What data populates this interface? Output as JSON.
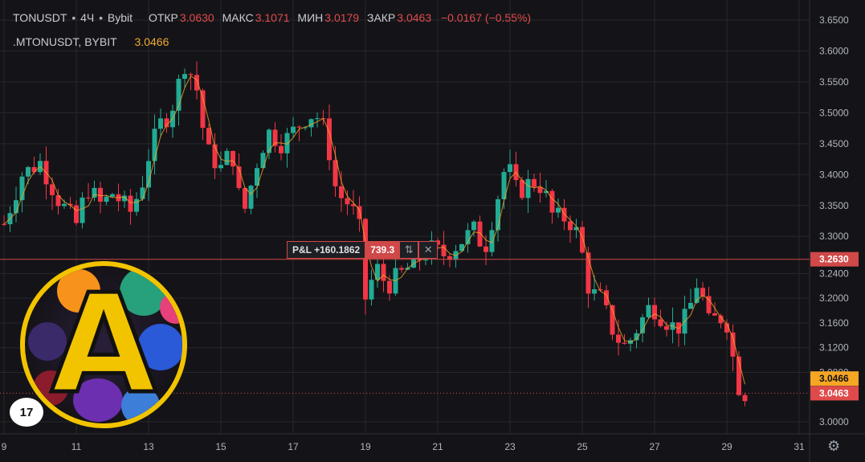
{
  "legend": {
    "symbol": "TONUSDT",
    "interval": "4Ч",
    "exchange": "Bybit",
    "open_label": "ОТКР",
    "open_value": "3.0630",
    "high_label": "МАКС",
    "high_value": "3.1071",
    "low_label": "МИН",
    "low_value": "3.0179",
    "close_label": "ЗАКР",
    "close_value": "3.0463",
    "change": "−0.0167 (−0.55%)",
    "mark_symbol": ".MTONUSDT, BYBIT",
    "mark_value": "3.0466"
  },
  "position": {
    "pnl_label": "P&L +160.1862",
    "qty": "739.3",
    "reverse_icon": "reverse-arrows-icon",
    "close_icon": "close-x-icon"
  },
  "price_tags": {
    "entry": "3.2630",
    "mark": "3.0466",
    "last": "3.0463"
  },
  "colors": {
    "up": "#22ab94",
    "down": "#f23645",
    "entry_line": "#d04848",
    "mark_tag": "#f5a623",
    "last_tag": "#e04a4a",
    "background": "#141418"
  },
  "watermark": {
    "logo_letter": "A",
    "tv_mark": "17"
  },
  "chart_data": {
    "type": "candlestick",
    "symbol": "TONUSDT",
    "y_ticks": [
      "3.6500",
      "3.6000",
      "3.5500",
      "3.5000",
      "3.4500",
      "3.4000",
      "3.3500",
      "3.3000",
      "3.2400",
      "3.2000",
      "3.1600",
      "3.1200",
      "3.0800",
      "3.0000"
    ],
    "x_ticks": [
      "9",
      "11",
      "13",
      "15",
      "17",
      "19",
      "21",
      "23",
      "25",
      "27",
      "29",
      "31"
    ],
    "ylim": [
      2.99,
      3.672
    ],
    "x_range_days": [
      9,
      31
    ],
    "entry_price": 3.263,
    "last_price": 3.0463,
    "mark_price": 3.0466,
    "close_path": [
      [
        9.0,
        3.32
      ],
      [
        9.5,
        3.4
      ],
      [
        10.0,
        3.42
      ],
      [
        10.5,
        3.36
      ],
      [
        11.0,
        3.32
      ],
      [
        11.3,
        3.38
      ],
      [
        11.7,
        3.35
      ],
      [
        12.0,
        3.37
      ],
      [
        12.5,
        3.34
      ],
      [
        12.8,
        3.38
      ],
      [
        13.0,
        3.43
      ],
      [
        13.3,
        3.48
      ],
      [
        13.6,
        3.5
      ],
      [
        14.0,
        3.58
      ],
      [
        14.3,
        3.55
      ],
      [
        14.6,
        3.44
      ],
      [
        15.0,
        3.41
      ],
      [
        15.3,
        3.44
      ],
      [
        15.6,
        3.33
      ],
      [
        16.0,
        3.42
      ],
      [
        16.3,
        3.47
      ],
      [
        16.7,
        3.45
      ],
      [
        17.0,
        3.47
      ],
      [
        17.3,
        3.49
      ],
      [
        17.6,
        3.5
      ],
      [
        17.9,
        3.47
      ],
      [
        18.2,
        3.37
      ],
      [
        18.6,
        3.35
      ],
      [
        18.9,
        3.3
      ],
      [
        19.0,
        3.2
      ],
      [
        19.3,
        3.25
      ],
      [
        19.6,
        3.22
      ],
      [
        20.0,
        3.24
      ],
      [
        20.4,
        3.26
      ],
      [
        20.8,
        3.28
      ],
      [
        21.2,
        3.27
      ],
      [
        21.6,
        3.29
      ],
      [
        22.0,
        3.31
      ],
      [
        22.3,
        3.28
      ],
      [
        22.6,
        3.35
      ],
      [
        22.9,
        3.42
      ],
      [
        23.2,
        3.37
      ],
      [
        23.6,
        3.39
      ],
      [
        23.9,
        3.38
      ],
      [
        24.2,
        3.33
      ],
      [
        24.6,
        3.33
      ],
      [
        24.9,
        3.3
      ],
      [
        25.2,
        3.21
      ],
      [
        25.5,
        3.2
      ],
      [
        25.9,
        3.14
      ],
      [
        26.2,
        3.12
      ],
      [
        26.5,
        3.15
      ],
      [
        26.9,
        3.19
      ],
      [
        27.2,
        3.17
      ],
      [
        27.6,
        3.15
      ],
      [
        27.9,
        3.17
      ],
      [
        28.2,
        3.23
      ],
      [
        28.5,
        3.16
      ],
      [
        28.8,
        3.17
      ],
      [
        29.0,
        3.16
      ],
      [
        29.3,
        3.06
      ],
      [
        29.5,
        3.046
      ]
    ]
  }
}
